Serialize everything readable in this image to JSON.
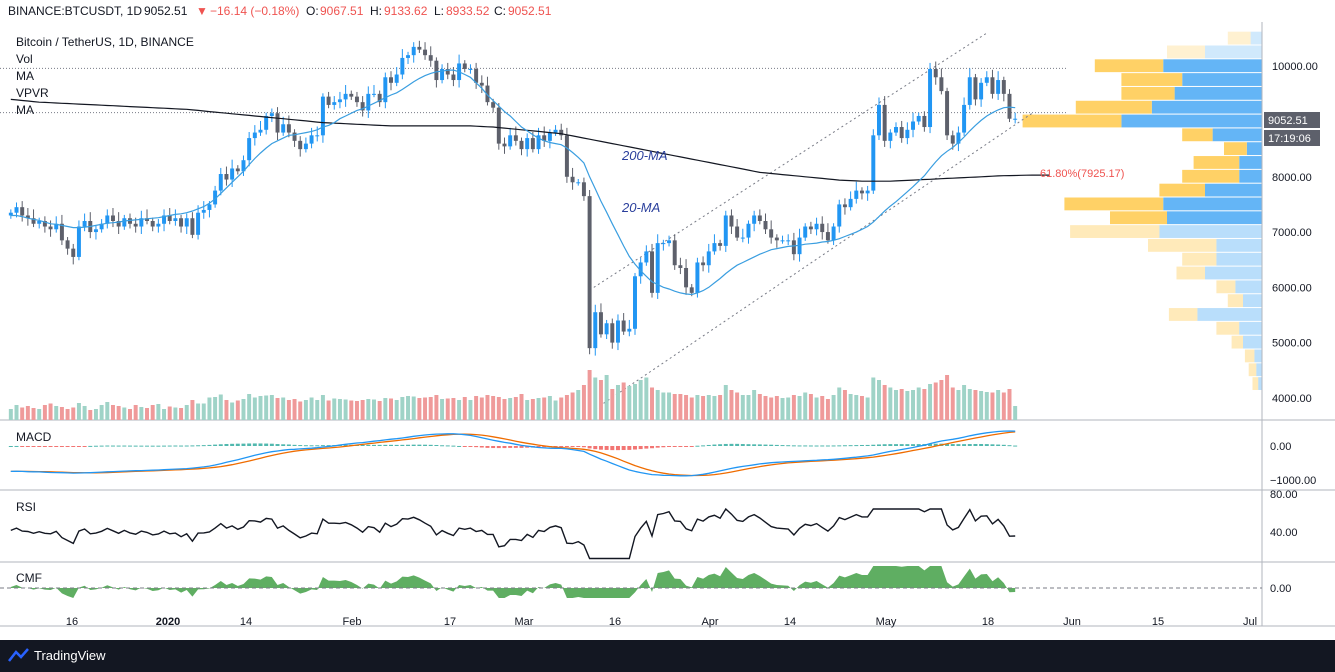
{
  "header": {
    "symbol": "BINANCE:BTCUSDT, 1D",
    "last": "9052.51",
    "change": "−16.14 (−0.18%)",
    "o_label": "O:",
    "o": "9067.51",
    "h_label": "H:",
    "h": "9133.62",
    "l_label": "L:",
    "l": "8933.52",
    "c_label": "C:",
    "c": "9052.51"
  },
  "legend": {
    "title": "Bitcoin / TetherUS, 1D, BINANCE",
    "items": [
      "Vol",
      "MA",
      "VPVR",
      "MA"
    ]
  },
  "panes": {
    "macd": "MACD",
    "rsi": "RSI",
    "cmf": "CMF"
  },
  "footer": {
    "brand": "TradingView"
  },
  "colors": {
    "up": "#2196f3",
    "down": "#5d606b",
    "ma20": "#3a9ee0",
    "ma200": "#131722",
    "vol_up": "#9fd3c7",
    "vol_down": "#ef9a9a",
    "cmf": "#43a047",
    "macd_line": "#2196f3",
    "signal_line": "#ef6c00",
    "fib": "#ef5350",
    "vp_up": "#64b5f6",
    "vp_down": "#ffd166"
  },
  "chart_data": {
    "type": "candlestick",
    "price_axis": {
      "ticks": [
        4000,
        5000,
        6000,
        7000,
        8000,
        9000,
        10000
      ],
      "labels": [
        "4000.00",
        "5000.00",
        "6000.00",
        "7000.00",
        "8000.00",
        "",
        "10000.00"
      ],
      "ylim": [
        3600,
        10800
      ]
    },
    "price_badge": {
      "value": "9052.51",
      "countdown": "17:19:06"
    },
    "x_ticks": [
      "16",
      "2020",
      "14",
      "Feb",
      "17",
      "Mar",
      "16",
      "Apr",
      "14",
      "May",
      "18",
      "Jun",
      "15",
      "Jul"
    ],
    "annotations": {
      "ma200": "200-MA",
      "ma20": "20-MA",
      "fib": "61.80%(7925.17)"
    },
    "levels": [
      9960,
      9160
    ],
    "closes": [
      7350,
      7450,
      7300,
      7250,
      7150,
      7200,
      7100,
      7050,
      7150,
      6850,
      6700,
      6550,
      7100,
      7200,
      7000,
      7050,
      7150,
      7300,
      7200,
      7100,
      7250,
      7150,
      7100,
      7250,
      7200,
      7100,
      7150,
      7300,
      7200,
      7250,
      7100,
      7250,
      6950,
      7350,
      7400,
      7500,
      7750,
      8050,
      7950,
      8150,
      8100,
      8300,
      8700,
      8800,
      8850,
      9100,
      9150,
      8800,
      8950,
      8800,
      8650,
      8500,
      8600,
      8750,
      8750,
      9450,
      9300,
      9350,
      9400,
      9500,
      9450,
      9350,
      9200,
      9500,
      9500,
      9350,
      9800,
      9700,
      9850,
      10150,
      10200,
      10350,
      10300,
      10200,
      10100,
      9750,
      9950,
      9850,
      9750,
      10050,
      9950,
      9950,
      9700,
      9650,
      9350,
      9250,
      8600,
      8550,
      8750,
      8650,
      8500,
      8700,
      8500,
      8750,
      8650,
      8800,
      8850,
      8750,
      8000,
      7900,
      7900,
      7650,
      4900,
      5550,
      5150,
      5350,
      5000,
      5400,
      5200,
      5250,
      6200,
      6450,
      6650,
      5900,
      6800,
      6800,
      6850,
      6400,
      6350,
      6000,
      5900,
      6450,
      6400,
      6650,
      6800,
      6750,
      7300,
      7100,
      6900,
      6900,
      7150,
      7300,
      7200,
      7050,
      6900,
      6850,
      6850,
      6850,
      6600,
      6900,
      7100,
      7050,
      7150,
      7000,
      6850,
      7100,
      7500,
      7450,
      7600,
      7750,
      7700,
      7750,
      8750,
      9300,
      8650,
      8800,
      8900,
      8700,
      8850,
      9000,
      9100,
      8900,
      9950,
      9800,
      9550,
      8750,
      8600,
      8800,
      9300,
      9800,
      9400,
      9700,
      9800,
      9500,
      9750,
      9500,
      9050,
      9050
    ],
    "volumes": [
      0.22,
      0.3,
      0.25,
      0.28,
      0.24,
      0.22,
      0.3,
      0.33,
      0.28,
      0.26,
      0.22,
      0.25,
      0.34,
      0.28,
      0.2,
      0.22,
      0.3,
      0.36,
      0.3,
      0.28,
      0.25,
      0.22,
      0.3,
      0.26,
      0.24,
      0.3,
      0.32,
      0.22,
      0.27,
      0.25,
      0.24,
      0.3,
      0.4,
      0.33,
      0.33,
      0.45,
      0.46,
      0.51,
      0.4,
      0.35,
      0.39,
      0.42,
      0.52,
      0.45,
      0.48,
      0.49,
      0.5,
      0.44,
      0.45,
      0.4,
      0.42,
      0.37,
      0.4,
      0.45,
      0.4,
      0.5,
      0.39,
      0.43,
      0.42,
      0.41,
      0.39,
      0.38,
      0.4,
      0.42,
      0.41,
      0.38,
      0.44,
      0.43,
      0.4,
      0.46,
      0.48,
      0.47,
      0.44,
      0.45,
      0.46,
      0.5,
      0.42,
      0.43,
      0.44,
      0.4,
      0.46,
      0.4,
      0.48,
      0.45,
      0.5,
      0.48,
      0.46,
      0.42,
      0.44,
      0.46,
      0.52,
      0.4,
      0.42,
      0.44,
      0.45,
      0.48,
      0.39,
      0.45,
      0.5,
      0.55,
      0.6,
      0.7,
      1.0,
      0.85,
      0.8,
      0.9,
      0.62,
      0.7,
      0.75,
      0.68,
      0.72,
      0.8,
      0.85,
      0.65,
      0.6,
      0.55,
      0.55,
      0.52,
      0.52,
      0.5,
      0.45,
      0.5,
      0.48,
      0.5,
      0.48,
      0.5,
      0.7,
      0.6,
      0.55,
      0.5,
      0.5,
      0.6,
      0.52,
      0.48,
      0.45,
      0.48,
      0.44,
      0.45,
      0.5,
      0.48,
      0.55,
      0.52,
      0.45,
      0.48,
      0.42,
      0.5,
      0.65,
      0.6,
      0.52,
      0.5,
      0.48,
      0.45,
      0.85,
      0.8,
      0.7,
      0.65,
      0.6,
      0.62,
      0.58,
      0.6,
      0.65,
      0.62,
      0.72,
      0.75,
      0.8,
      0.9,
      0.65,
      0.6,
      0.7,
      0.62,
      0.6,
      0.58,
      0.56,
      0.55,
      0.6,
      0.55,
      0.62,
      0.28
    ],
    "ma20": [
      7300,
      7300,
      7280,
      7250,
      7230,
      7210,
      7180,
      7150,
      7140,
      7120,
      7100,
      7080,
      7080,
      7090,
      7100,
      7120,
      7140,
      7160,
      7170,
      7180,
      7200,
      7210,
      7220,
      7230,
      7240,
      7250,
      7260,
      7280,
      7300,
      7320,
      7330,
      7350,
      7380,
      7420,
      7460,
      7520,
      7600,
      7700,
      7800,
      7900,
      8000,
      8100,
      8220,
      8330,
      8430,
      8520,
      8600,
      8650,
      8700,
      8750,
      8760,
      8780,
      8800,
      8820,
      8850,
      8900,
      8930,
      8980,
      9050,
      9100,
      9150,
      9200,
      9230,
      9280,
      9330,
      9380,
      9430,
      9480,
      9520,
      9580,
      9650,
      9720,
      9780,
      9830,
      9870,
      9900,
      9910,
      9930,
      9930,
      9900,
      9850,
      9800,
      9700,
      9600,
      9480,
      9380,
      9280,
      9180,
      9100,
      9000,
      8900,
      8830,
      8760,
      8700,
      8650,
      8620,
      8600,
      8580,
      8520,
      8440,
      8350,
      8250,
      8000,
      7780,
      7560,
      7360,
      7150,
      6950,
      6750,
      6560,
      6420,
      6300,
      6200,
      6100,
      6050,
      6000,
      5970,
      5930,
      5900,
      5880,
      5870,
      5900,
      5940,
      6000,
      6080,
      6160,
      6250,
      6330,
      6400,
      6450,
      6500,
      6550,
      6600,
      6640,
      6680,
      6700,
      6720,
      6740,
      6750,
      6760,
      6780,
      6790,
      6800,
      6820,
      6830,
      6850,
      6880,
      6920,
      6960,
      7000,
      7050,
      7100,
      7180,
      7280,
      7380,
      7470,
      7550,
      7640,
      7730,
      7820,
      7920,
      8020,
      8150,
      8270,
      8380,
      8460,
      8530,
      8620,
      8720,
      8830,
      8930,
      9020,
      9100,
      9160,
      9210,
      9250,
      9260,
      9250
    ],
    "ma200": [
      9400,
      9390,
      9380,
      9370,
      9360,
      9350,
      9345,
      9340,
      9335,
      9330,
      9325,
      9320,
      9315,
      9310,
      9305,
      9300,
      9295,
      9290,
      9285,
      9280,
      9275,
      9270,
      9265,
      9260,
      9255,
      9250,
      9245,
      9240,
      9235,
      9230,
      9225,
      9220,
      9210,
      9200,
      9190,
      9180,
      9170,
      9160,
      9150,
      9140,
      9130,
      9120,
      9110,
      9100,
      9090,
      9080,
      9070,
      9060,
      9050,
      9040,
      9030,
      9020,
      9010,
      9000,
      8990,
      8980,
      8975,
      8970,
      8965,
      8960,
      8955,
      8950,
      8945,
      8940,
      8935,
      8930,
      8925,
      8920,
      8920,
      8920,
      8920,
      8920,
      8920,
      8920,
      8920,
      8920,
      8920,
      8920,
      8920,
      8920,
      8920,
      8920,
      8915,
      8910,
      8905,
      8900,
      8890,
      8880,
      8870,
      8860,
      8850,
      8840,
      8830,
      8820,
      8810,
      8800,
      8790,
      8780,
      8760,
      8740,
      8720,
      8700,
      8680,
      8660,
      8640,
      8620,
      8600,
      8580,
      8560,
      8540,
      8520,
      8500,
      8480,
      8460,
      8440,
      8420,
      8400,
      8380,
      8360,
      8340,
      8320,
      8300,
      8280,
      8260,
      8240,
      8220,
      8200,
      8180,
      8160,
      8140,
      8120,
      8100,
      8080,
      8070,
      8060,
      8050,
      8040,
      8030,
      8020,
      8010,
      8000,
      7990,
      7980,
      7970,
      7960,
      7950,
      7940,
      7935,
      7930,
      7925,
      7920,
      7920,
      7920,
      7920,
      7920,
      7920,
      7925,
      7930,
      7935,
      7940,
      7945,
      7950,
      7955,
      7960,
      7965,
      7970,
      7975,
      7980,
      7985,
      7990,
      7995,
      8000,
      8005,
      8010,
      8015,
      8020,
      8022,
      8024,
      8026,
      8028,
      8030,
      8030,
      8030,
      8030
    ],
    "rsi": {
      "ticks": [
        40,
        80
      ],
      "labels": [
        "40.00",
        "80.00"
      ]
    },
    "macd": {
      "ticks": [
        -1000,
        0
      ],
      "labels": [
        "−1000.00",
        "0.00"
      ]
    },
    "cmf": {
      "ticks": [
        0
      ],
      "labels": [
        "0.00"
      ]
    }
  }
}
